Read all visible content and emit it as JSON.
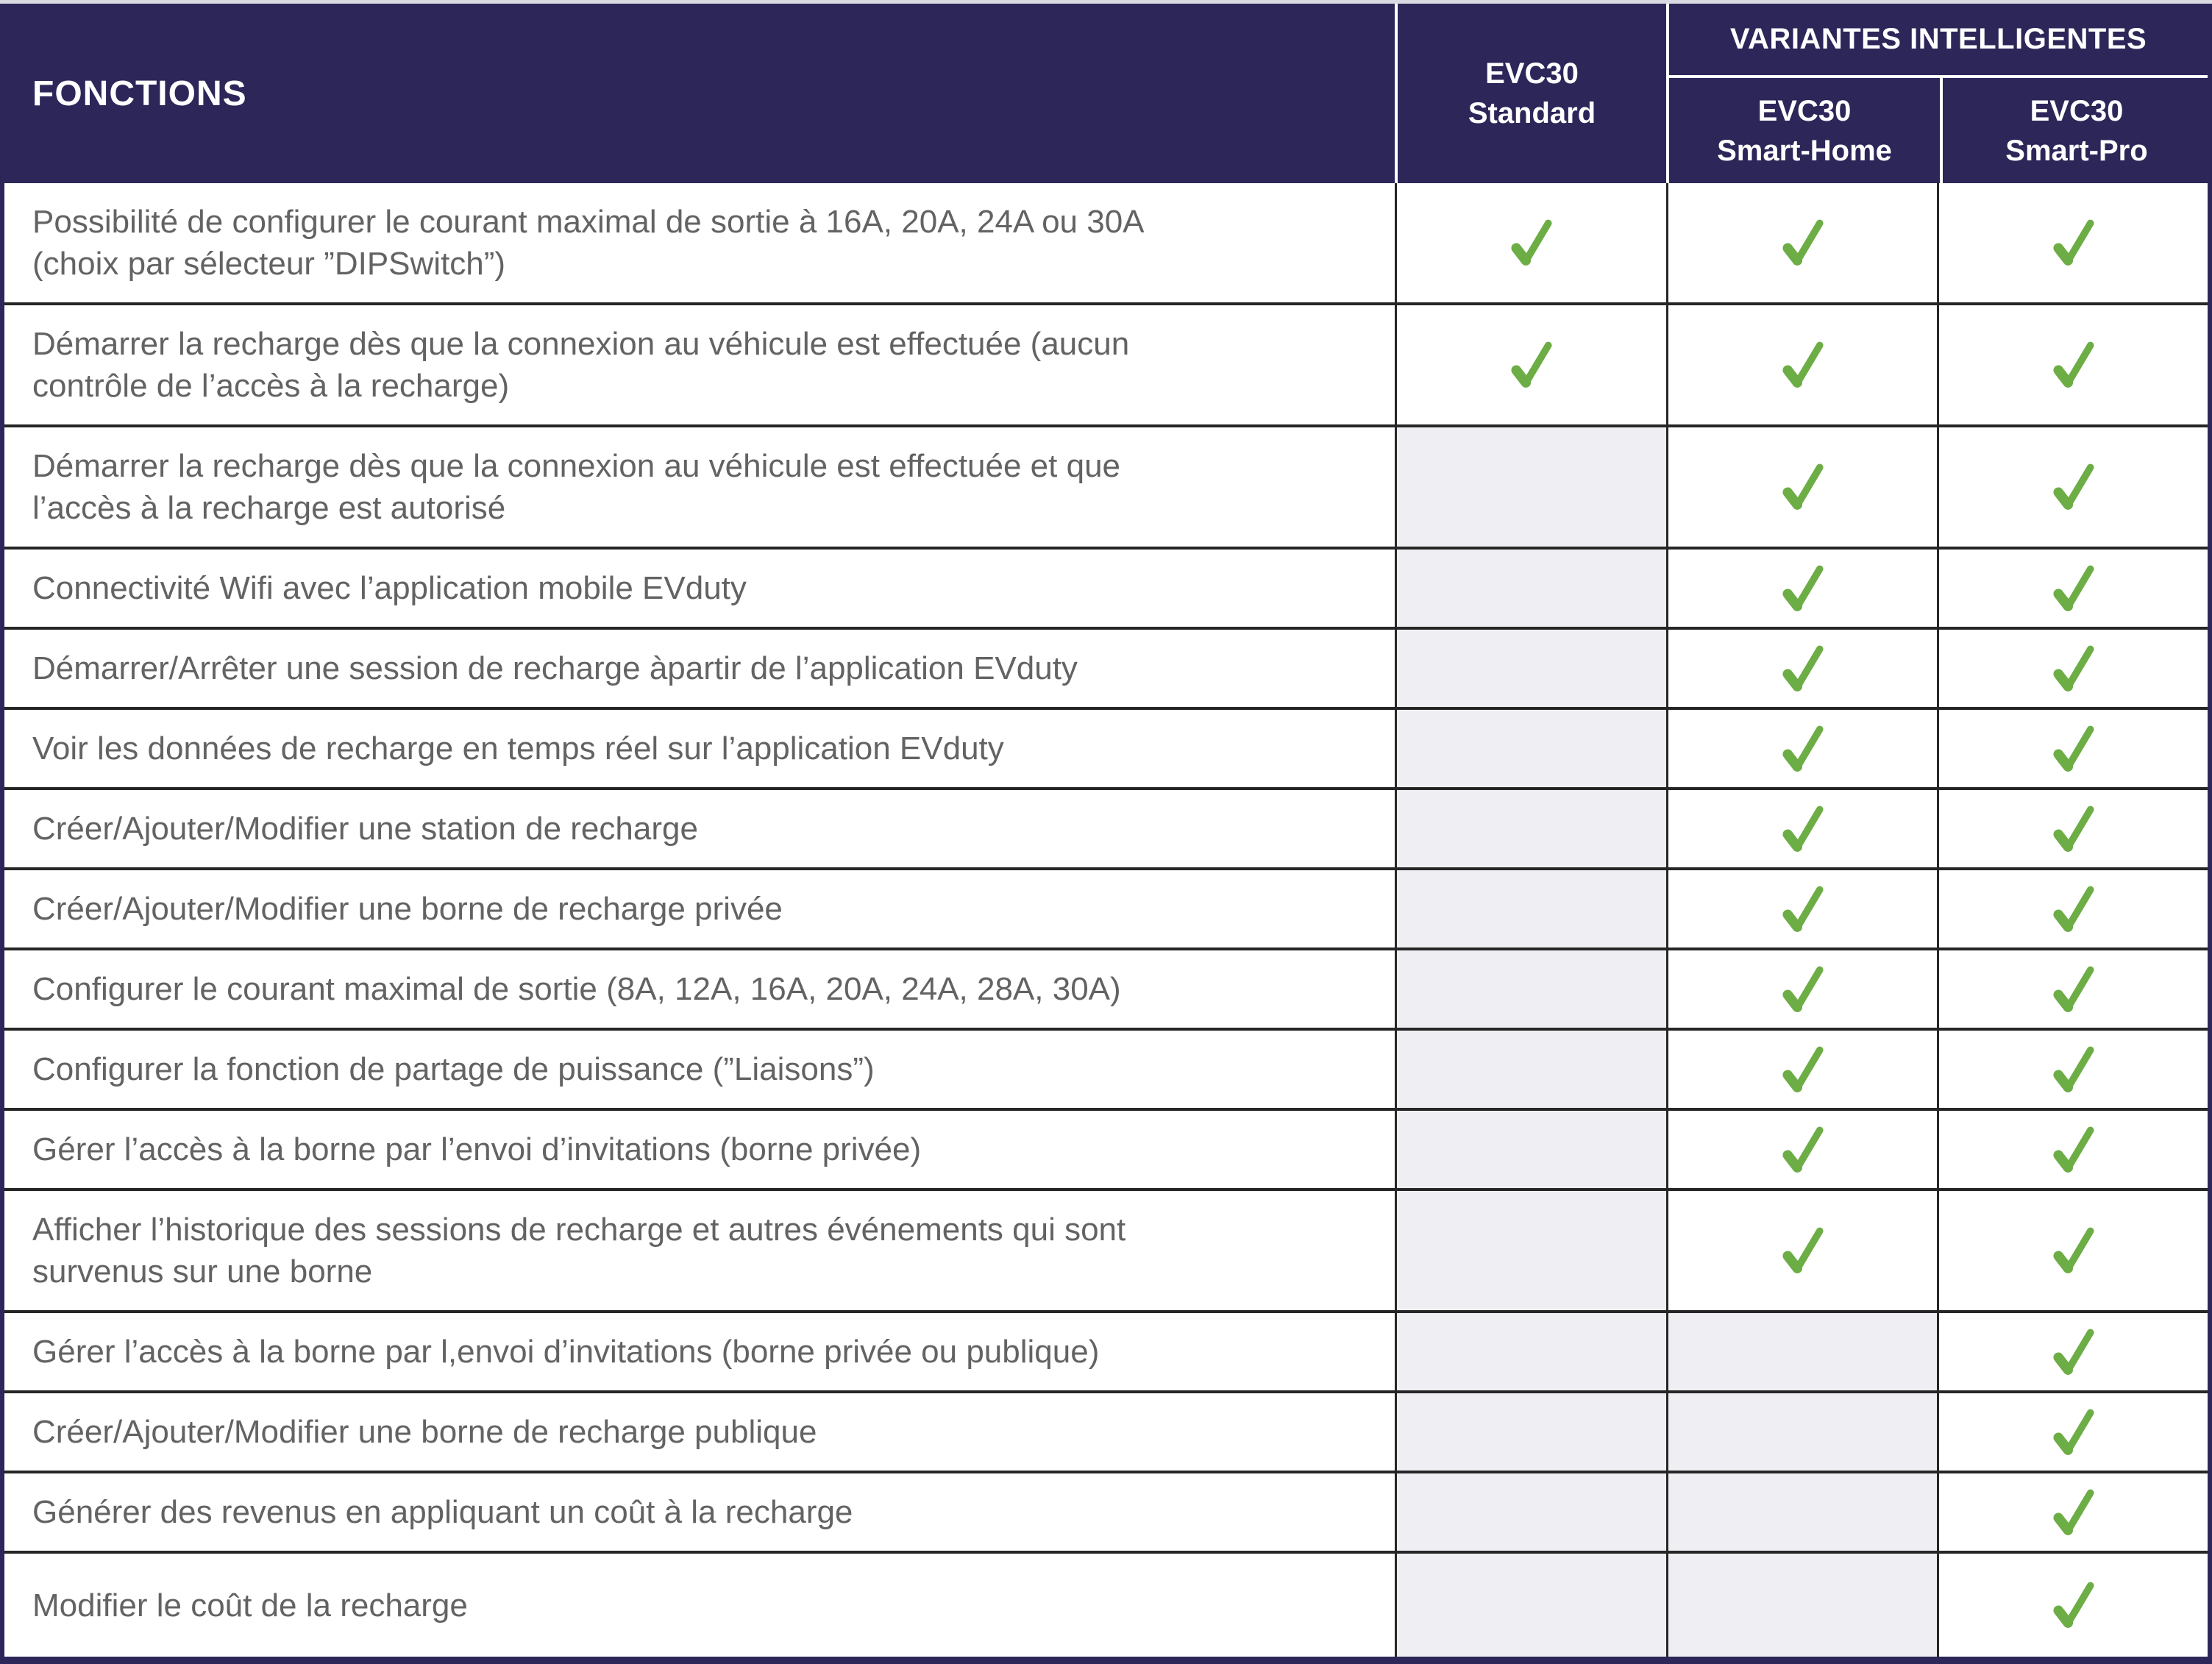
{
  "colors": {
    "header_navy": "#2C2659",
    "check_green": "#6CAD45",
    "empty_cell_gray": "#EFEFF3",
    "feature_text_gray": "#636363",
    "grid_border_dark": "#262626",
    "top_edge_strip": "#D9D9E3"
  },
  "header": {
    "fonctions": "FONCTIONS",
    "variantes": "VARIANTES INTELLIGENTES",
    "standard": {
      "line1": "EVC30",
      "line2": "Standard"
    },
    "smart_home": {
      "line1": "EVC30",
      "line2": "Smart-Home"
    },
    "smart_pro": {
      "line1": "EVC30",
      "line2": "Smart-Pro"
    }
  },
  "table": {
    "columns": [
      "EVC30 Standard",
      "EVC30 Smart-Home",
      "EVC30 Smart-Pro"
    ],
    "check_icon": "check-icon",
    "rows": [
      {
        "feature": "Possibilité de configurer le courant maximal de sortie à 16A, 20A, 24A ou 30A (choix par sélecteur ”DIPSwitch”)",
        "checks": {
          "standard": true,
          "smart_home": true,
          "smart_pro": true
        }
      },
      {
        "feature": "Démarrer la recharge dès que la connexion au véhicule est effectuée (aucun contrôle de l’accès à la recharge)",
        "checks": {
          "standard": true,
          "smart_home": true,
          "smart_pro": true
        }
      },
      {
        "feature": "Démarrer la recharge dès que la connexion au véhicule est effectuée et que l’accès à la recharge est autorisé",
        "checks": {
          "standard": false,
          "smart_home": true,
          "smart_pro": true
        }
      },
      {
        "feature": "Connectivité Wifi avec l’application mobile EVduty",
        "checks": {
          "standard": false,
          "smart_home": true,
          "smart_pro": true
        }
      },
      {
        "feature": "Démarrer/Arrêter une session de recharge àpartir de l’application EVduty",
        "checks": {
          "standard": false,
          "smart_home": true,
          "smart_pro": true
        }
      },
      {
        "feature": "Voir les données de recharge en temps réel sur l’application EVduty",
        "checks": {
          "standard": false,
          "smart_home": true,
          "smart_pro": true
        }
      },
      {
        "feature": "Créer/Ajouter/Modifier une station de recharge",
        "checks": {
          "standard": false,
          "smart_home": true,
          "smart_pro": true
        }
      },
      {
        "feature": "Créer/Ajouter/Modifier une borne de recharge privée",
        "checks": {
          "standard": false,
          "smart_home": true,
          "smart_pro": true
        }
      },
      {
        "feature": "Configurer le courant maximal de sortie (8A, 12A, 16A, 20A, 24A, 28A, 30A)",
        "checks": {
          "standard": false,
          "smart_home": true,
          "smart_pro": true
        }
      },
      {
        "feature": "Configurer la fonction de partage de puissance (”Liaisons”)",
        "checks": {
          "standard": false,
          "smart_home": true,
          "smart_pro": true
        }
      },
      {
        "feature": "Gérer l’accès à la borne par l’envoi d’invitations (borne privée)",
        "checks": {
          "standard": false,
          "smart_home": true,
          "smart_pro": true
        }
      },
      {
        "feature": "Afficher l’historique des sessions de recharge et autres événements qui sont survenus sur une borne",
        "checks": {
          "standard": false,
          "smart_home": true,
          "smart_pro": true
        }
      },
      {
        "feature": "Gérer l’accès à la borne par l,envoi d’invitations (borne privée ou publique)",
        "checks": {
          "standard": false,
          "smart_home": false,
          "smart_pro": true
        }
      },
      {
        "feature": "Créer/Ajouter/Modifier une borne de recharge publique",
        "checks": {
          "standard": false,
          "smart_home": false,
          "smart_pro": true
        }
      },
      {
        "feature": "Générer des revenus en appliquant un coût à la recharge",
        "checks": {
          "standard": false,
          "smart_home": false,
          "smart_pro": true
        }
      },
      {
        "feature": "Modifier le coût de la recharge",
        "checks": {
          "standard": false,
          "smart_home": false,
          "smart_pro": true
        }
      }
    ]
  }
}
